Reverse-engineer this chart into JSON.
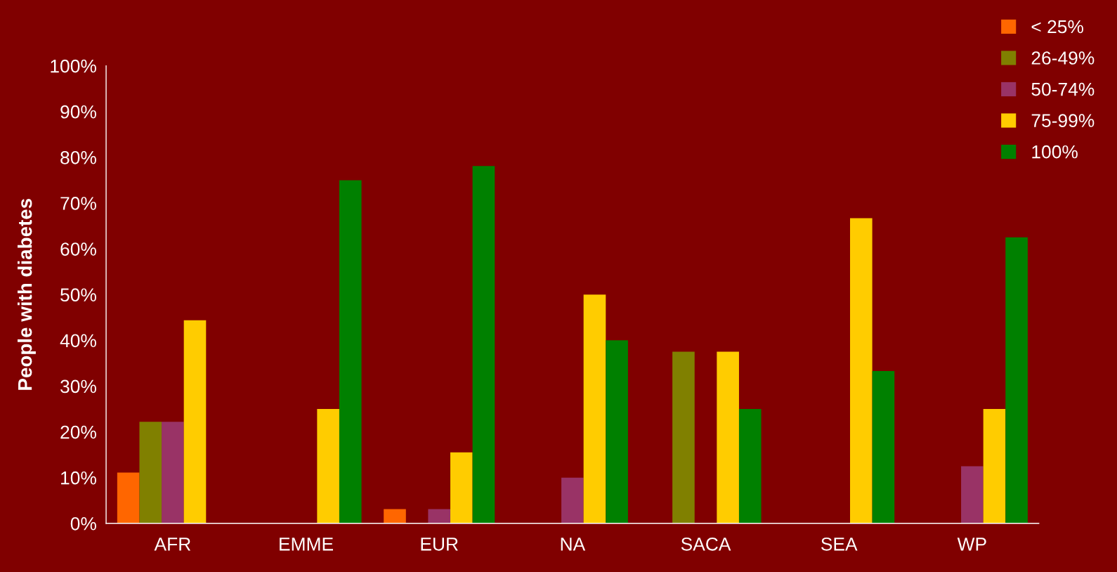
{
  "chart_data": {
    "type": "bar",
    "ylabel": "People with diabetes",
    "categories": [
      "AFR",
      "EMME",
      "EUR",
      "NA",
      "SACA",
      "SEA",
      "WP"
    ],
    "series": [
      {
        "name": "< 25%",
        "color": "#ff6600",
        "values": [
          11.1,
          0,
          3.1,
          0,
          0,
          0,
          0
        ]
      },
      {
        "name": "26-49%",
        "color": "#808000",
        "values": [
          22.2,
          0,
          0,
          0,
          37.5,
          0,
          0
        ]
      },
      {
        "name": "50-74%",
        "color": "#993366",
        "values": [
          22.2,
          0,
          3.1,
          10,
          0,
          0,
          12.5
        ]
      },
      {
        "name": "75-99%",
        "color": "#ffcc00",
        "values": [
          44.4,
          25,
          15.5,
          50,
          37.5,
          66.7,
          25
        ]
      },
      {
        "name": "100%",
        "color": "#008000",
        "values": [
          0,
          75,
          78.1,
          40,
          25,
          33.3,
          62.5
        ]
      }
    ],
    "ylim": [
      0,
      100
    ],
    "yticks": [
      {
        "value": 0,
        "label": "0%"
      },
      {
        "value": 10,
        "label": "10%"
      },
      {
        "value": 20,
        "label": "20%"
      },
      {
        "value": 30,
        "label": "30%"
      },
      {
        "value": 40,
        "label": "40%"
      },
      {
        "value": 50,
        "label": "50%"
      },
      {
        "value": 60,
        "label": "60%"
      },
      {
        "value": 70,
        "label": "70%"
      },
      {
        "value": 80,
        "label": "80%"
      },
      {
        "value": 90,
        "label": "90%"
      },
      {
        "value": 100,
        "label": "100%"
      }
    ],
    "grid": false,
    "legend": "top right"
  }
}
